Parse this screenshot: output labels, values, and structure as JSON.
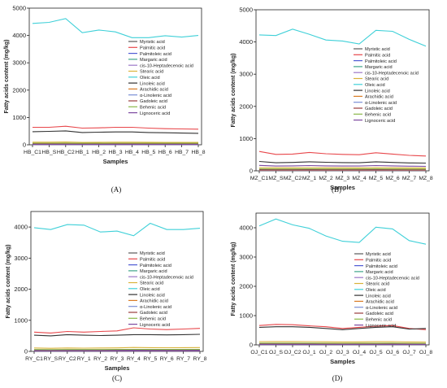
{
  "legend_entries": [
    "Myristic acid",
    "Palmitic acid",
    "Palmitoleic acid",
    "Margaric acid",
    "cis-10-Heptadecenoic acid",
    "Stearic acid",
    "Oleic acid",
    "Linoleic acid",
    "Arachidic acid",
    "α-Linolenic acid",
    "Gadoleic acid",
    "Behenic acid",
    "Lignoceric acid"
  ],
  "series_colors": [
    "#5a5a5a",
    "#e8474b",
    "#4f5bd5",
    "#3fa68a",
    "#9d78c8",
    "#d9b23a",
    "#3fd0d8",
    "#333333",
    "#d97c26",
    "#7a8fd6",
    "#9a3c3c",
    "#8bb84a",
    "#7d4aa0"
  ],
  "chart_data": [
    {
      "type": "line",
      "panel_label": "(A)",
      "xlabel": "Samples",
      "ylabel": "Fatty acids content (mg/kg)",
      "ylim": [
        0,
        5000
      ],
      "yticks": [
        0,
        1000,
        2000,
        3000,
        4000,
        5000
      ],
      "categories": [
        "HB_C1",
        "HB_S",
        "HB_C2",
        "HB_1",
        "HB_2",
        "HB_3",
        "HB_4",
        "HB_5",
        "HB_6",
        "HB_7",
        "HB_8"
      ],
      "series": [
        {
          "name": "Myristic acid",
          "values": [
            12,
            12,
            12,
            12,
            12,
            12,
            12,
            12,
            12,
            12,
            12
          ]
        },
        {
          "name": "Palmitic acid",
          "values": [
            640,
            640,
            680,
            610,
            620,
            640,
            640,
            610,
            590,
            580,
            570
          ]
        },
        {
          "name": "Palmitoleic acid",
          "values": [
            35,
            35,
            36,
            34,
            34,
            35,
            35,
            34,
            34,
            33,
            33
          ]
        },
        {
          "name": "Margaric acid",
          "values": [
            15,
            15,
            15,
            15,
            15,
            15,
            15,
            15,
            15,
            15,
            15
          ]
        },
        {
          "name": "cis-10-Heptadecenoic acid",
          "values": [
            10,
            10,
            10,
            10,
            10,
            10,
            10,
            10,
            10,
            10,
            10
          ]
        },
        {
          "name": "Stearic acid",
          "values": [
            95,
            95,
            100,
            90,
            92,
            95,
            95,
            92,
            90,
            88,
            88
          ]
        },
        {
          "name": "Oleic acid",
          "values": [
            4440,
            4480,
            4620,
            4100,
            4200,
            4130,
            3920,
            3920,
            3990,
            3940,
            4000
          ]
        },
        {
          "name": "Linoleic acid",
          "values": [
            480,
            490,
            510,
            450,
            460,
            470,
            470,
            450,
            440,
            430,
            420
          ]
        },
        {
          "name": "Arachidic acid",
          "values": [
            20,
            20,
            20,
            20,
            20,
            20,
            20,
            20,
            20,
            20,
            20
          ]
        },
        {
          "name": "α-Linolenic acid",
          "values": [
            25,
            25,
            25,
            25,
            25,
            25,
            25,
            25,
            25,
            25,
            25
          ]
        },
        {
          "name": "Gadoleic acid",
          "values": [
            30,
            30,
            32,
            28,
            29,
            30,
            30,
            29,
            28,
            28,
            28
          ]
        },
        {
          "name": "Behenic acid",
          "values": [
            60,
            60,
            62,
            58,
            58,
            60,
            60,
            58,
            57,
            56,
            56
          ]
        },
        {
          "name": "Lignoceric acid",
          "values": [
            18,
            18,
            18,
            18,
            18,
            18,
            18,
            18,
            18,
            18,
            18
          ]
        }
      ]
    },
    {
      "type": "line",
      "panel_label": "(B)",
      "xlabel": "Samples",
      "ylabel": "Fatty acids content (mg/kg)",
      "ylim": [
        0,
        5000
      ],
      "yticks": [
        0,
        1000,
        2000,
        3000,
        4000,
        5000
      ],
      "categories": [
        "MZ_C1",
        "MZ_S",
        "MZ_C2",
        "MZ_1",
        "MZ_2",
        "MZ_3",
        "MZ_4",
        "MZ_5",
        "MZ_6",
        "MZ_7",
        "MZ_8"
      ],
      "series": [
        {
          "name": "Myristic acid",
          "values": [
            12,
            12,
            12,
            12,
            12,
            12,
            12,
            12,
            12,
            12,
            12
          ]
        },
        {
          "name": "Palmitic acid",
          "values": [
            600,
            510,
            520,
            570,
            530,
            510,
            500,
            560,
            520,
            480,
            460
          ]
        },
        {
          "name": "Palmitoleic acid",
          "values": [
            40,
            38,
            38,
            40,
            38,
            38,
            37,
            40,
            38,
            36,
            35
          ]
        },
        {
          "name": "Margaric acid",
          "values": [
            15,
            15,
            15,
            15,
            15,
            15,
            15,
            15,
            15,
            15,
            15
          ]
        },
        {
          "name": "cis-10-Heptadecenoic acid",
          "values": [
            10,
            10,
            10,
            10,
            10,
            10,
            10,
            10,
            10,
            10,
            10
          ]
        },
        {
          "name": "Stearic acid",
          "values": [
            100,
            95,
            95,
            100,
            96,
            95,
            94,
            100,
            96,
            92,
            90
          ]
        },
        {
          "name": "Oleic acid",
          "values": [
            4220,
            4200,
            4400,
            4240,
            4060,
            4030,
            3940,
            4360,
            4330,
            4080,
            3870
          ]
        },
        {
          "name": "Linoleic acid",
          "values": [
            290,
            250,
            260,
            280,
            265,
            255,
            250,
            280,
            260,
            245,
            240
          ]
        },
        {
          "name": "Arachidic acid",
          "values": [
            20,
            20,
            20,
            20,
            20,
            20,
            20,
            20,
            20,
            20,
            20
          ]
        },
        {
          "name": "α-Linolenic acid",
          "values": [
            25,
            25,
            25,
            25,
            25,
            25,
            25,
            25,
            25,
            25,
            25
          ]
        },
        {
          "name": "Gadoleic acid",
          "values": [
            30,
            30,
            30,
            30,
            30,
            30,
            30,
            30,
            30,
            30,
            30
          ]
        },
        {
          "name": "Behenic acid",
          "values": [
            60,
            58,
            58,
            60,
            58,
            58,
            57,
            60,
            58,
            56,
            55
          ]
        },
        {
          "name": "Lignoceric acid",
          "values": [
            170,
            150,
            155,
            165,
            155,
            150,
            148,
            165,
            155,
            145,
            140
          ]
        }
      ]
    },
    {
      "type": "line",
      "panel_label": "(C)",
      "xlabel": "Samples",
      "ylabel": "Fatty acids content (mg/kg)",
      "ylim": [
        0,
        4500
      ],
      "yticks": [
        0,
        1000,
        2000,
        3000,
        4000
      ],
      "categories": [
        "RY_C1",
        "RY_S",
        "RY_C2",
        "RY_1",
        "RY_2",
        "RY_3",
        "RY_4",
        "RY_5",
        "RY_6",
        "RY_7",
        "RY_8"
      ],
      "series": [
        {
          "name": "Myristic acid",
          "values": [
            12,
            12,
            12,
            12,
            12,
            12,
            12,
            12,
            12,
            12,
            12
          ]
        },
        {
          "name": "Palmitic acid",
          "values": [
            620,
            590,
            640,
            620,
            640,
            660,
            760,
            720,
            700,
            720,
            740
          ]
        },
        {
          "name": "Palmitoleic acid",
          "values": [
            40,
            38,
            40,
            40,
            40,
            42,
            46,
            44,
            43,
            44,
            45
          ]
        },
        {
          "name": "Margaric acid",
          "values": [
            15,
            15,
            15,
            15,
            15,
            15,
            15,
            15,
            15,
            15,
            15
          ]
        },
        {
          "name": "cis-10-Heptadecenoic acid",
          "values": [
            10,
            10,
            10,
            10,
            10,
            10,
            10,
            10,
            10,
            10,
            10
          ]
        },
        {
          "name": "Stearic acid",
          "values": [
            110,
            100,
            110,
            105,
            110,
            112,
            125,
            120,
            118,
            120,
            122
          ]
        },
        {
          "name": "Oleic acid",
          "values": [
            3980,
            3920,
            4080,
            4060,
            3840,
            3870,
            3720,
            4120,
            3920,
            3920,
            3960
          ]
        },
        {
          "name": "Linoleic acid",
          "values": [
            520,
            500,
            540,
            520,
            510,
            520,
            540,
            540,
            530,
            540,
            550
          ]
        },
        {
          "name": "Arachidic acid",
          "values": [
            20,
            20,
            20,
            20,
            20,
            20,
            20,
            20,
            20,
            20,
            20
          ]
        },
        {
          "name": "α-Linolenic acid",
          "values": [
            25,
            25,
            25,
            25,
            25,
            25,
            25,
            25,
            25,
            25,
            25
          ]
        },
        {
          "name": "Gadoleic acid",
          "values": [
            30,
            30,
            30,
            30,
            30,
            30,
            30,
            30,
            30,
            30,
            30
          ]
        },
        {
          "name": "Behenic acid",
          "values": [
            60,
            58,
            60,
            60,
            60,
            62,
            66,
            64,
            63,
            64,
            65
          ]
        },
        {
          "name": "Lignoceric acid",
          "values": [
            18,
            18,
            18,
            18,
            18,
            18,
            18,
            18,
            18,
            18,
            18
          ]
        }
      ]
    },
    {
      "type": "line",
      "panel_label": "(D)",
      "xlabel": "Samples",
      "ylabel": "Fatty acids content (mg/kg)",
      "ylim": [
        0,
        4500
      ],
      "yticks": [
        0,
        1000,
        2000,
        3000,
        4000
      ],
      "categories": [
        "OJ_C1",
        "OJ_S",
        "OJ_C2",
        "OJ_1",
        "OJ_2",
        "OJ_3",
        "OJ_4",
        "OJ_5",
        "OJ_6",
        "OJ_7",
        "OJ_8"
      ],
      "series": [
        {
          "name": "Myristic acid",
          "values": [
            12,
            12,
            12,
            12,
            12,
            12,
            12,
            12,
            12,
            12,
            12
          ]
        },
        {
          "name": "Palmitic acid",
          "values": [
            660,
            700,
            690,
            650,
            620,
            560,
            600,
            640,
            660,
            560,
            520
          ]
        },
        {
          "name": "Palmitoleic acid",
          "values": [
            40,
            42,
            42,
            40,
            38,
            35,
            37,
            39,
            40,
            35,
            33
          ]
        },
        {
          "name": "Margaric acid",
          "values": [
            15,
            15,
            15,
            15,
            15,
            15,
            15,
            15,
            15,
            15,
            15
          ]
        },
        {
          "name": "cis-10-Heptadecenoic acid",
          "values": [
            10,
            10,
            10,
            10,
            10,
            10,
            10,
            10,
            10,
            10,
            10
          ]
        },
        {
          "name": "Stearic acid",
          "values": [
            110,
            115,
            115,
            110,
            105,
            100,
            104,
            108,
            110,
            100,
            96
          ]
        },
        {
          "name": "Oleic acid",
          "values": [
            4060,
            4300,
            4100,
            3980,
            3720,
            3540,
            3500,
            4020,
            3960,
            3560,
            3440
          ]
        },
        {
          "name": "Linoleic acid",
          "values": [
            600,
            620,
            620,
            600,
            560,
            520,
            560,
            600,
            620,
            540,
            560
          ]
        },
        {
          "name": "Arachidic acid",
          "values": [
            20,
            20,
            20,
            20,
            20,
            20,
            20,
            20,
            20,
            20,
            20
          ]
        },
        {
          "name": "α-Linolenic acid",
          "values": [
            25,
            25,
            25,
            25,
            25,
            25,
            25,
            25,
            25,
            25,
            25
          ]
        },
        {
          "name": "Gadoleic acid",
          "values": [
            30,
            30,
            30,
            30,
            30,
            30,
            30,
            30,
            30,
            30,
            30
          ]
        },
        {
          "name": "Behenic acid",
          "values": [
            60,
            62,
            62,
            60,
            58,
            55,
            57,
            59,
            60,
            55,
            53
          ]
        },
        {
          "name": "Lignoceric acid",
          "values": [
            18,
            18,
            18,
            18,
            18,
            18,
            18,
            18,
            18,
            18,
            18
          ]
        }
      ]
    }
  ]
}
